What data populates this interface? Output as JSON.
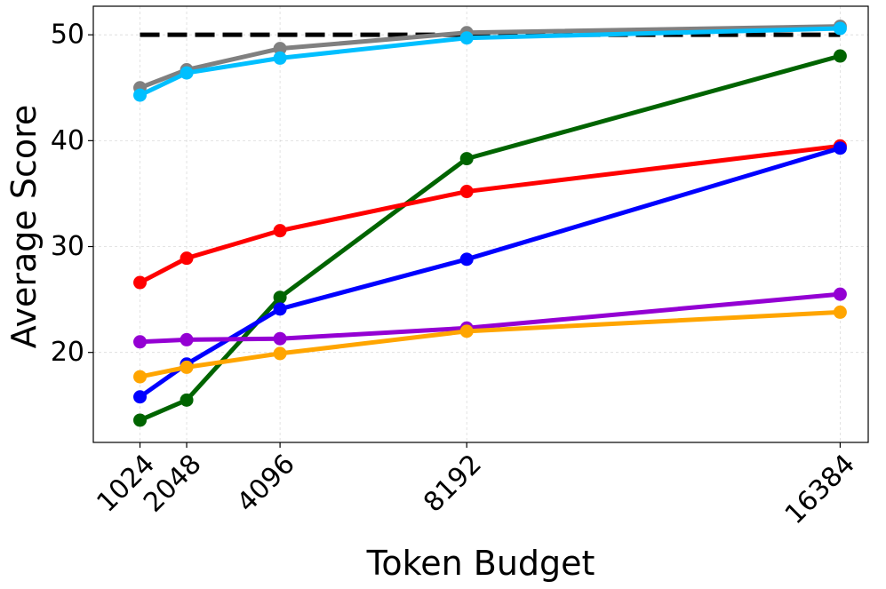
{
  "chart_data": {
    "type": "line",
    "title": "",
    "xlabel": "Token Budget",
    "ylabel": "Average Score",
    "x": [
      1024,
      2048,
      4096,
      8192,
      16384
    ],
    "x_tick_labels": [
      "1024",
      "2048",
      "4096",
      "8192",
      "16384"
    ],
    "y_ticks": [
      20,
      30,
      40,
      50
    ],
    "xlim": [
      0,
      17000
    ],
    "ylim": [
      11.5,
      52.7
    ],
    "grid": true,
    "legend": "none",
    "reference_line": {
      "y": 50,
      "style": "dashed",
      "color": "#000000"
    },
    "series": [
      {
        "color": "#808080",
        "values": [
          45.0,
          46.7,
          48.7,
          50.2,
          50.8
        ]
      },
      {
        "color": "#00bfff",
        "values": [
          44.3,
          46.4,
          47.8,
          49.7,
          50.6
        ]
      },
      {
        "color": "#006400",
        "values": [
          13.6,
          15.5,
          25.2,
          38.3,
          48.0
        ]
      },
      {
        "color": "#ff0000",
        "values": [
          26.6,
          28.9,
          31.5,
          35.2,
          39.5
        ]
      },
      {
        "color": "#0000ff",
        "values": [
          15.8,
          18.9,
          24.1,
          28.8,
          39.3
        ]
      },
      {
        "color": "#9400d3",
        "values": [
          21.0,
          21.2,
          21.3,
          22.3,
          25.5
        ]
      },
      {
        "color": "#ffa500",
        "values": [
          17.7,
          18.6,
          19.9,
          22.0,
          23.8
        ]
      }
    ]
  }
}
